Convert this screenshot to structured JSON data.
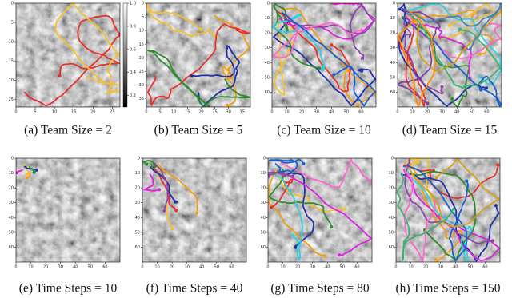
{
  "panels": [
    {
      "caption": "(a)  Team Size = 2",
      "xlim": [
        0,
        27
      ],
      "ylim": [
        0,
        27
      ],
      "xticks": [
        0,
        5,
        10,
        15,
        20,
        25
      ],
      "yticks": [
        0,
        5,
        10,
        15,
        20,
        25
      ],
      "colorbar_ticks": [
        {
          "value": 1.0,
          "label": "1.0"
        },
        0.8,
        0.6,
        0.4,
        0.2
      ],
      "colorbar_lim": [
        0.1,
        1.0
      ],
      "trajectory_colors": [
        "#e8302a",
        "#f5c02a"
      ]
    },
    {
      "caption": "(b)  Team Size = 5",
      "xlim": [
        0,
        38
      ],
      "ylim": [
        0,
        38
      ],
      "xticks": [
        0,
        5,
        10,
        15,
        20,
        25,
        30,
        35
      ],
      "yticks": [
        0,
        5,
        10,
        15,
        20,
        25,
        30,
        35
      ],
      "trajectory_colors": [
        "#f39c12",
        "#f5c02a",
        "#e8302a",
        "#1f2fa8",
        "#2e8b2e"
      ]
    },
    {
      "caption": "(c)  Team Size = 10",
      "xlim": [
        0,
        70
      ],
      "ylim": [
        0,
        70
      ],
      "xticks": [
        0,
        10,
        20,
        30,
        40,
        50,
        60
      ],
      "yticks": [
        0,
        10,
        20,
        30,
        40,
        50,
        60
      ],
      "trajectory_colors": [
        "#f39c12",
        "#f5c02a",
        "#e8302a",
        "#1f2fa8",
        "#2e8b2e",
        "#e020e0",
        "#30d0e0",
        "#8e44ad",
        "#ff66cc",
        "#1560d0"
      ]
    },
    {
      "caption": "(d)  Team Size = 15",
      "xlim": [
        0,
        70
      ],
      "ylim": [
        0,
        70
      ],
      "xticks": [
        0,
        10,
        20,
        30,
        40,
        50,
        60
      ],
      "yticks": [
        0,
        10,
        20,
        30,
        40,
        50,
        60
      ],
      "trajectory_colors": [
        "#f39c12",
        "#f5c02a",
        "#e8302a",
        "#1f2fa8",
        "#2e8b2e",
        "#e020e0",
        "#30d0e0",
        "#8e44ad",
        "#ff66cc",
        "#1560d0",
        "#d4a017",
        "#7b3fa0",
        "#3cb371",
        "#ff8c00",
        "#4682b4"
      ]
    },
    {
      "caption": "(e)  Time Steps = 10",
      "xlim": [
        0,
        70
      ],
      "ylim": [
        0,
        70
      ],
      "xticks": [
        0,
        10,
        20,
        30,
        40,
        50,
        60
      ],
      "yticks": [
        0,
        10,
        20,
        30,
        40,
        50,
        60
      ],
      "trajectory_colors": [
        "#f39c12",
        "#f5c02a",
        "#1f2fa8",
        "#2e8b2e",
        "#e020e0"
      ]
    },
    {
      "caption": "(f)  Time Steps = 40",
      "xlim": [
        0,
        70
      ],
      "ylim": [
        0,
        70
      ],
      "xticks": [
        0,
        10,
        20,
        30,
        40,
        50,
        60
      ],
      "yticks": [
        0,
        10,
        20,
        30,
        40,
        50,
        60
      ],
      "trajectory_colors": [
        "#f39c12",
        "#f5c02a",
        "#e8302a",
        "#1f2fa8",
        "#2e8b2e",
        "#e020e0",
        "#8e44ad"
      ]
    },
    {
      "caption": "(g)  Time Steps = 80",
      "xlim": [
        0,
        70
      ],
      "ylim": [
        0,
        70
      ],
      "xticks": [
        0,
        10,
        20,
        30,
        40,
        50,
        60
      ],
      "yticks": [
        0,
        10,
        20,
        30,
        40,
        50,
        60
      ],
      "trajectory_colors": [
        "#f39c12",
        "#f5c02a",
        "#e8302a",
        "#1f2fa8",
        "#2e8b2e",
        "#e020e0",
        "#30d0e0",
        "#8e44ad",
        "#ff66cc",
        "#1560d0"
      ]
    },
    {
      "caption": "(h)  Time Steps = 150",
      "xlim": [
        0,
        70
      ],
      "ylim": [
        0,
        70
      ],
      "xticks": [
        0,
        10,
        20,
        30,
        40,
        50,
        60
      ],
      "yticks": [
        0,
        10,
        20,
        30,
        40,
        50,
        60
      ],
      "trajectory_colors": [
        "#f39c12",
        "#f5c02a",
        "#e8302a",
        "#1f2fa8",
        "#2e8b2e",
        "#e020e0",
        "#30d0e0",
        "#8e44ad",
        "#ff66cc",
        "#1560d0",
        "#d4a017",
        "#3cb371"
      ]
    }
  ]
}
